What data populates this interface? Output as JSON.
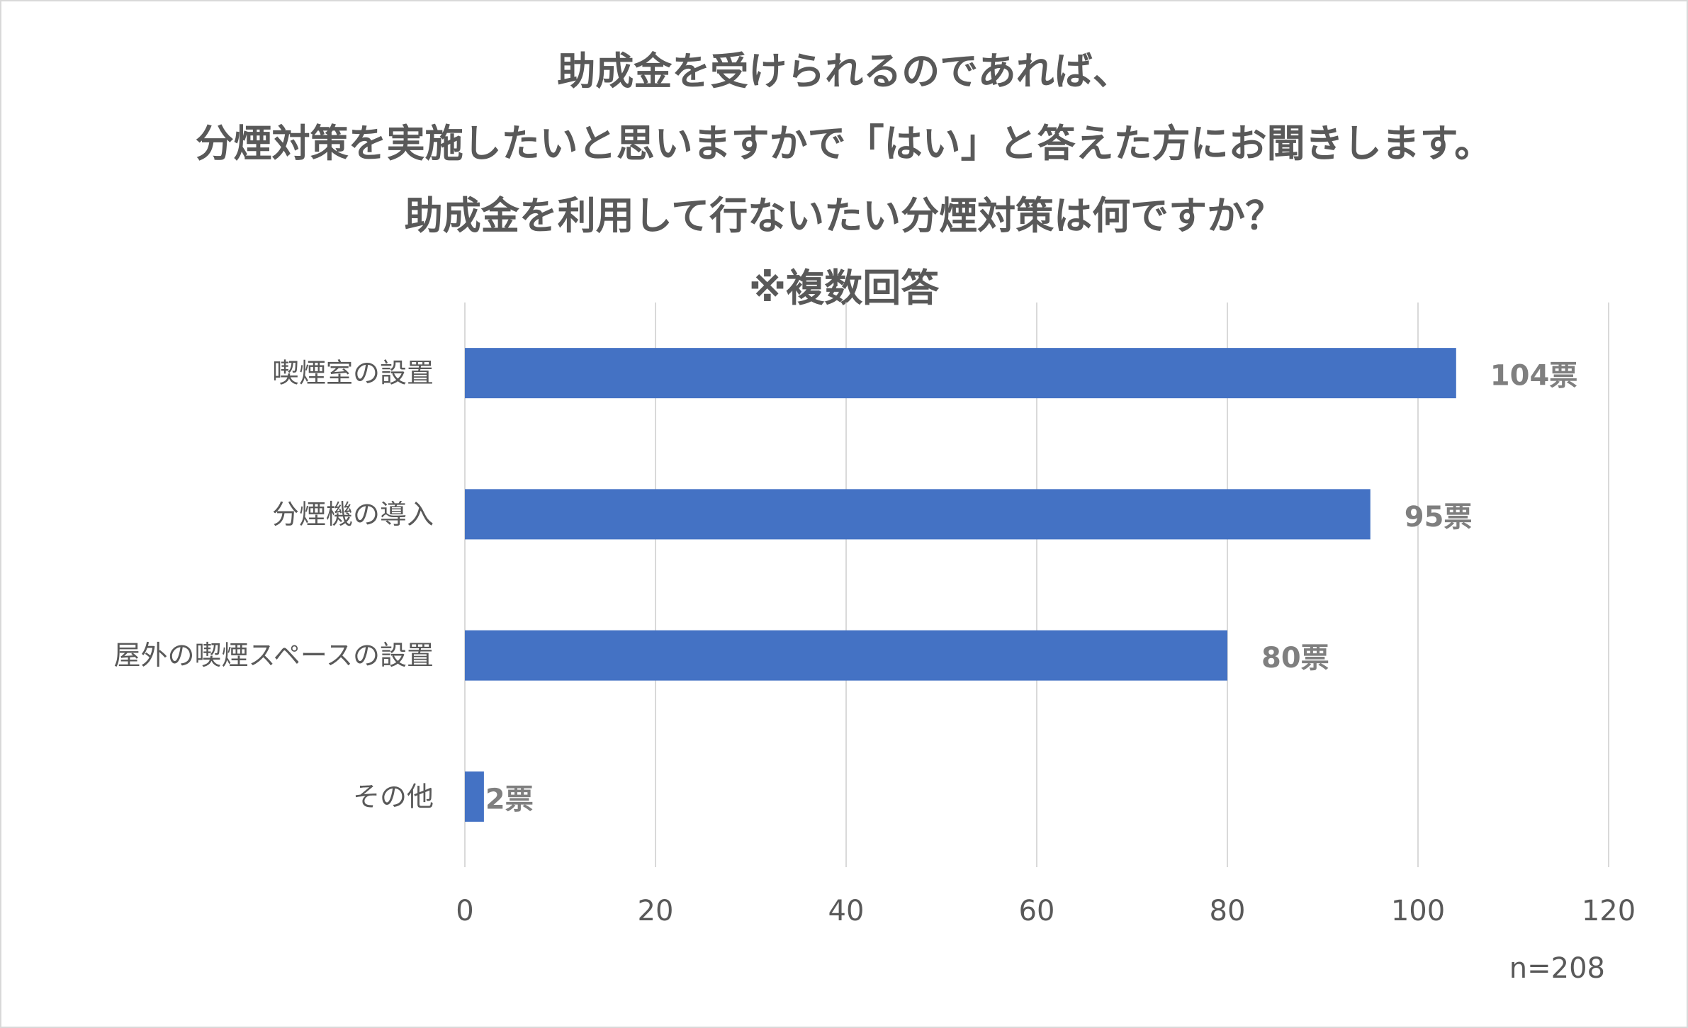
{
  "chart_data": {
    "type": "bar",
    "orientation": "horizontal",
    "title_lines": [
      "助成金を受けられるのであれば、",
      "分煙対策を実施したいと思いますかで「はい」と答えた方にお聞きします。",
      "助成金を利用して行ないたい分煙対策は何ですか？",
      "※複数回答"
    ],
    "categories": [
      "喫煙室の設置",
      "分煙機の導入",
      "屋外の喫煙スペースの設置",
      "その他"
    ],
    "values": [
      104,
      95,
      80,
      2
    ],
    "data_labels": [
      "104票",
      "95票",
      "80票",
      "2票"
    ],
    "xlim": [
      0,
      120
    ],
    "x_ticks": [
      "0",
      "20",
      "40",
      "60",
      "80",
      "100",
      "120"
    ],
    "grid": true,
    "legend": "none",
    "bar_color": "#4472c4",
    "note": "n=208"
  }
}
